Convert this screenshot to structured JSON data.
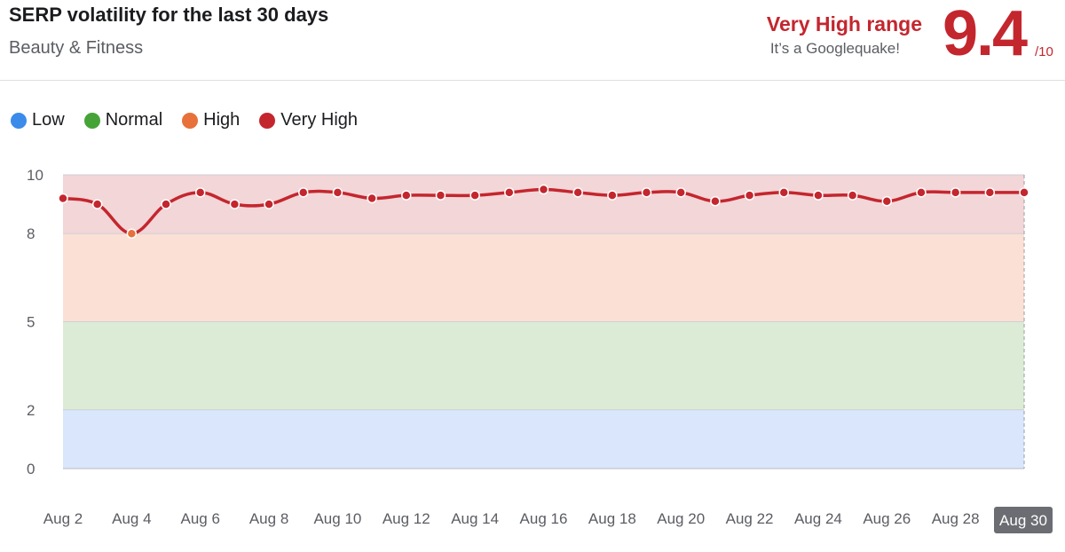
{
  "header": {
    "title": "SERP volatility for the last 30 days",
    "subtitle": "Beauty & Fitness",
    "range_label": "Very High range",
    "range_desc": "It’s a Googlequake!",
    "score": "9.4",
    "score_max": "/10"
  },
  "legend": [
    {
      "label": "Low",
      "color": "#3b8beb"
    },
    {
      "label": "Normal",
      "color": "#46a338"
    },
    {
      "label": "High",
      "color": "#e8703a"
    },
    {
      "label": "Very High",
      "color": "#c4262e"
    }
  ],
  "chart_data": {
    "type": "line",
    "title": "SERP volatility for the last 30 days",
    "xlabel": "",
    "ylabel": "",
    "ylim": [
      0,
      10
    ],
    "y_ticks": [
      0,
      2,
      5,
      8,
      10
    ],
    "bands": [
      {
        "name": "Low",
        "from": 0,
        "to": 2,
        "color": "#d9e6fb"
      },
      {
        "name": "Normal",
        "from": 2,
        "to": 5,
        "color": "#dcebd6"
      },
      {
        "name": "High",
        "from": 5,
        "to": 8,
        "color": "#fbe0d6"
      },
      {
        "name": "Very High",
        "from": 8,
        "to": 10,
        "color": "#f2d6d8"
      }
    ],
    "x": [
      "Aug 2",
      "Aug 3",
      "Aug 4",
      "Aug 5",
      "Aug 6",
      "Aug 7",
      "Aug 8",
      "Aug 9",
      "Aug 10",
      "Aug 11",
      "Aug 12",
      "Aug 13",
      "Aug 14",
      "Aug 15",
      "Aug 16",
      "Aug 17",
      "Aug 18",
      "Aug 19",
      "Aug 20",
      "Aug 21",
      "Aug 22",
      "Aug 23",
      "Aug 24",
      "Aug 25",
      "Aug 26",
      "Aug 27",
      "Aug 28",
      "Aug 29",
      "Aug 30"
    ],
    "x_tick_labels": [
      "Aug 2",
      "Aug 4",
      "Aug 6",
      "Aug 8",
      "Aug 10",
      "Aug 12",
      "Aug 14",
      "Aug 16",
      "Aug 18",
      "Aug 20",
      "Aug 22",
      "Aug 24",
      "Aug 26",
      "Aug 28",
      "Aug 30"
    ],
    "highlighted_x": "Aug 30",
    "series": [
      {
        "color": "#c4262e",
        "values": [
          9.2,
          9.0,
          8.0,
          9.0,
          9.4,
          9.0,
          9.0,
          9.4,
          9.4,
          9.2,
          9.3,
          9.3,
          9.3,
          9.4,
          9.5,
          9.4,
          9.3,
          9.4,
          9.4,
          9.1,
          9.3,
          9.4,
          9.3,
          9.3,
          9.1,
          9.4,
          9.4,
          9.4,
          9.4
        ]
      }
    ],
    "grid": true,
    "legend_position": "top-left"
  }
}
